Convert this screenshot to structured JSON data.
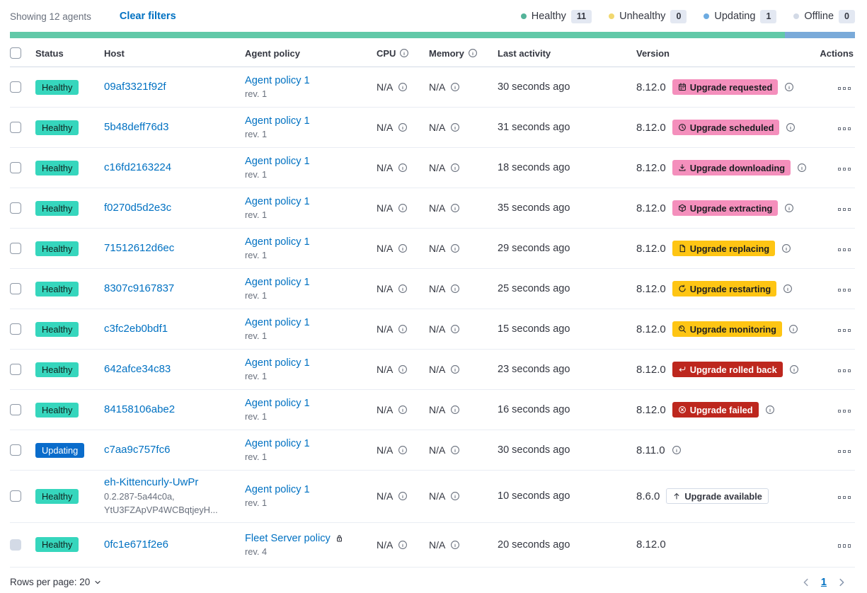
{
  "toolbar": {
    "showing_text": "Showing 12 agents",
    "clear_filters_label": "Clear filters",
    "legend": [
      {
        "label": "Healthy",
        "count": "11",
        "color": "#54b399"
      },
      {
        "label": "Unhealthy",
        "count": "0",
        "color": "#f1d86f"
      },
      {
        "label": "Updating",
        "count": "1",
        "color": "#6dabe1"
      },
      {
        "label": "Offline",
        "count": "0",
        "color": "#d3dae6"
      }
    ]
  },
  "health_bar": {
    "segments": [
      {
        "status": "healthy",
        "color": "#61c9a8",
        "fraction": 0.9167
      },
      {
        "status": "updating",
        "color": "#7aaad9",
        "fraction": 0.0833
      }
    ]
  },
  "table": {
    "headers": {
      "status": "Status",
      "host": "Host",
      "policy": "Agent policy",
      "cpu": "CPU",
      "memory": "Memory",
      "last_activity": "Last activity",
      "version": "Version",
      "actions": "Actions"
    }
  },
  "rows": [
    {
      "status": {
        "label": "Healthy",
        "variant": "success"
      },
      "host": "09af3321f92f",
      "host_sub": [],
      "policy": {
        "name": "Agent policy 1",
        "rev": "rev. 1",
        "locked": false
      },
      "cpu": "N/A",
      "memory": "N/A",
      "last_activity": "30 seconds ago",
      "version": "8.12.0",
      "upgrade": {
        "label": "Upgrade requested",
        "variant": "accent",
        "icon": "calendar-icon"
      },
      "info": true,
      "checkbox_disabled": false
    },
    {
      "status": {
        "label": "Healthy",
        "variant": "success"
      },
      "host": "5b48deff76d3",
      "host_sub": [],
      "policy": {
        "name": "Agent policy 1",
        "rev": "rev. 1",
        "locked": false
      },
      "cpu": "N/A",
      "memory": "N/A",
      "last_activity": "31 seconds ago",
      "version": "8.12.0",
      "upgrade": {
        "label": "Upgrade scheduled",
        "variant": "accent",
        "icon": "clock-icon"
      },
      "info": true,
      "checkbox_disabled": false
    },
    {
      "status": {
        "label": "Healthy",
        "variant": "success"
      },
      "host": "c16fd2163224",
      "host_sub": [],
      "policy": {
        "name": "Agent policy 1",
        "rev": "rev. 1",
        "locked": false
      },
      "cpu": "N/A",
      "memory": "N/A",
      "last_activity": "18 seconds ago",
      "version": "8.12.0",
      "upgrade": {
        "label": "Upgrade downloading",
        "variant": "accent",
        "icon": "download-icon"
      },
      "info": true,
      "checkbox_disabled": false
    },
    {
      "status": {
        "label": "Healthy",
        "variant": "success"
      },
      "host": "f0270d5d2e3c",
      "host_sub": [],
      "policy": {
        "name": "Agent policy 1",
        "rev": "rev. 1",
        "locked": false
      },
      "cpu": "N/A",
      "memory": "N/A",
      "last_activity": "35 seconds ago",
      "version": "8.12.0",
      "upgrade": {
        "label": "Upgrade extracting",
        "variant": "accent",
        "icon": "package-icon"
      },
      "info": true,
      "checkbox_disabled": false
    },
    {
      "status": {
        "label": "Healthy",
        "variant": "success"
      },
      "host": "71512612d6ec",
      "host_sub": [],
      "policy": {
        "name": "Agent policy 1",
        "rev": "rev. 1",
        "locked": false
      },
      "cpu": "N/A",
      "memory": "N/A",
      "last_activity": "29 seconds ago",
      "version": "8.12.0",
      "upgrade": {
        "label": "Upgrade replacing",
        "variant": "warning",
        "icon": "document-icon"
      },
      "info": true,
      "checkbox_disabled": false
    },
    {
      "status": {
        "label": "Healthy",
        "variant": "success"
      },
      "host": "8307c9167837",
      "host_sub": [],
      "policy": {
        "name": "Agent policy 1",
        "rev": "rev. 1",
        "locked": false
      },
      "cpu": "N/A",
      "memory": "N/A",
      "last_activity": "25 seconds ago",
      "version": "8.12.0",
      "upgrade": {
        "label": "Upgrade restarting",
        "variant": "warning",
        "icon": "refresh-icon"
      },
      "info": true,
      "checkbox_disabled": false
    },
    {
      "status": {
        "label": "Healthy",
        "variant": "success"
      },
      "host": "c3fc2eb0bdf1",
      "host_sub": [],
      "policy": {
        "name": "Agent policy 1",
        "rev": "rev. 1",
        "locked": false
      },
      "cpu": "N/A",
      "memory": "N/A",
      "last_activity": "15 seconds ago",
      "version": "8.12.0",
      "upgrade": {
        "label": "Upgrade monitoring",
        "variant": "warning",
        "icon": "inspect-icon"
      },
      "info": true,
      "checkbox_disabled": false
    },
    {
      "status": {
        "label": "Healthy",
        "variant": "success"
      },
      "host": "642afce34c83",
      "host_sub": [],
      "policy": {
        "name": "Agent policy 1",
        "rev": "rev. 1",
        "locked": false
      },
      "cpu": "N/A",
      "memory": "N/A",
      "last_activity": "23 seconds ago",
      "version": "8.12.0",
      "upgrade": {
        "label": "Upgrade rolled back",
        "variant": "danger",
        "icon": "return-icon"
      },
      "info": true,
      "checkbox_disabled": false
    },
    {
      "status": {
        "label": "Healthy",
        "variant": "success"
      },
      "host": "84158106abe2",
      "host_sub": [],
      "policy": {
        "name": "Agent policy 1",
        "rev": "rev. 1",
        "locked": false
      },
      "cpu": "N/A",
      "memory": "N/A",
      "last_activity": "16 seconds ago",
      "version": "8.12.0",
      "upgrade": {
        "label": "Upgrade failed",
        "variant": "danger",
        "icon": "cross-circle-icon"
      },
      "info": true,
      "checkbox_disabled": false
    },
    {
      "status": {
        "label": "Updating",
        "variant": "primary"
      },
      "host": "c7aa9c757fc6",
      "host_sub": [],
      "policy": {
        "name": "Agent policy 1",
        "rev": "rev. 1",
        "locked": false
      },
      "cpu": "N/A",
      "memory": "N/A",
      "last_activity": "30 seconds ago",
      "version": "8.11.0",
      "upgrade": null,
      "info": true,
      "checkbox_disabled": false
    },
    {
      "status": {
        "label": "Healthy",
        "variant": "success"
      },
      "host": "eh-Kittencurly-UwPr",
      "host_sub": [
        "0.2.287-5a44c0a,",
        "YtU3FZApVP4WCBqtjeyH..."
      ],
      "policy": {
        "name": "Agent policy 1",
        "rev": "rev. 1",
        "locked": false
      },
      "cpu": "N/A",
      "memory": "N/A",
      "last_activity": "10 seconds ago",
      "version": "8.6.0",
      "upgrade": {
        "label": "Upgrade available",
        "variant": "hollow",
        "icon": "arrow-up-icon"
      },
      "info": false,
      "checkbox_disabled": false
    },
    {
      "status": {
        "label": "Healthy",
        "variant": "success"
      },
      "host": "0fc1e671f2e6",
      "host_sub": [],
      "policy": {
        "name": "Fleet Server policy",
        "rev": "rev. 4",
        "locked": true
      },
      "cpu": "N/A",
      "memory": "N/A",
      "last_activity": "20 seconds ago",
      "version": "8.12.0",
      "upgrade": null,
      "info": false,
      "checkbox_disabled": true
    }
  ],
  "footer": {
    "rows_per_page_label": "Rows per page: 20",
    "page": "1"
  }
}
